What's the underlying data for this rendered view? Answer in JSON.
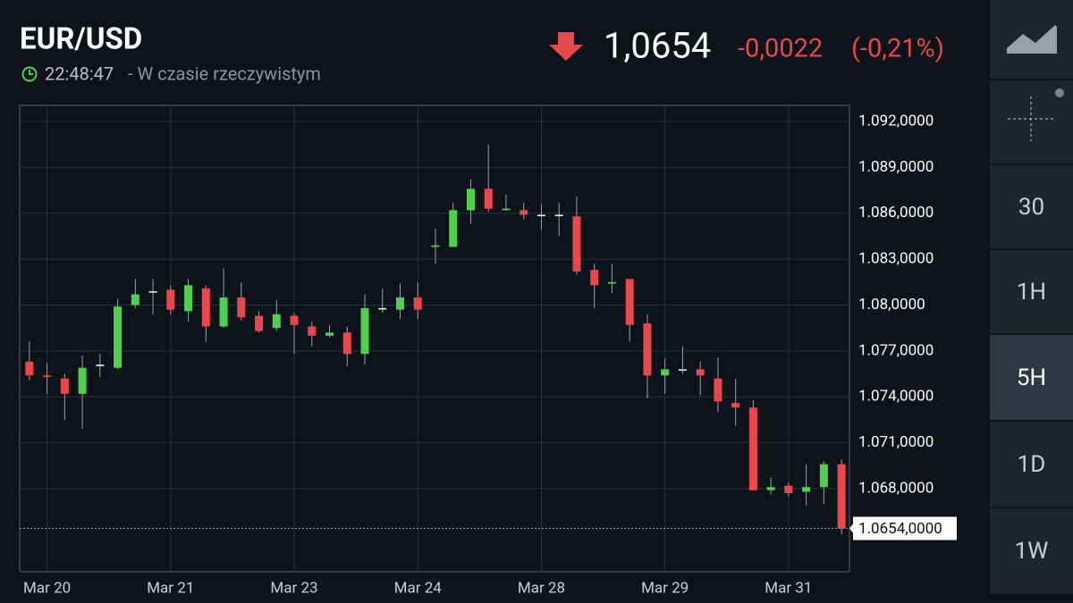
{
  "header": {
    "symbol": "EUR/USD",
    "time": "22:48:47",
    "mode": " - W czasie rzeczywistym",
    "price": "1,0654",
    "change": "-0,0022",
    "change_pct": "(-0,21%)"
  },
  "toolbar": {
    "intervals": [
      "30",
      "1H",
      "5H",
      "1D",
      "1W"
    ],
    "selected_interval": "5H"
  },
  "chart_data": {
    "type": "candlestick",
    "categories": [
      null,
      "Mar 20",
      null,
      null,
      null,
      null,
      null,
      null,
      "Mar 21",
      null,
      null,
      null,
      null,
      null,
      null,
      "Mar 23",
      null,
      null,
      null,
      null,
      null,
      null,
      "Mar 24",
      null,
      null,
      null,
      null,
      null,
      null,
      "Mar 28",
      null,
      null,
      null,
      null,
      null,
      null,
      "Mar 29",
      null,
      null,
      null,
      null,
      null,
      null,
      "Mar 31",
      null,
      null,
      null
    ],
    "open": [
      1.0763,
      1.0754,
      1.0752,
      1.0742,
      1.0761,
      1.0759,
      1.08,
      1.0809,
      1.081,
      1.0796,
      1.0811,
      1.0786,
      1.0805,
      1.0793,
      1.0785,
      1.0793,
      1.0786,
      1.078,
      1.0782,
      1.0768,
      1.0798,
      1.0797,
      1.0805,
      1.0838,
      1.0838,
      1.0862,
      1.0876,
      1.0862,
      1.0862,
      1.0859,
      1.0859,
      1.0858,
      1.0823,
      1.0814,
      1.0817,
      1.0788,
      1.0754,
      1.0758,
      1.0758,
      1.0752,
      1.0736,
      1.0733,
      1.0679,
      1.0682,
      1.0678,
      1.0681,
      1.0696
    ],
    "high": [
      1.0776,
      1.0762,
      1.0755,
      1.0767,
      1.0768,
      1.0804,
      1.0817,
      1.0817,
      1.0813,
      1.0817,
      1.0813,
      1.0824,
      1.0815,
      1.0796,
      1.0803,
      1.0795,
      1.0789,
      1.0787,
      1.0786,
      1.0807,
      1.0811,
      1.0814,
      1.0815,
      1.085,
      1.0867,
      1.0882,
      1.0905,
      1.0872,
      1.0867,
      1.0866,
      1.0867,
      1.0871,
      1.0827,
      1.0827,
      1.0817,
      1.0794,
      1.0765,
      1.0773,
      1.0763,
      1.0766,
      1.0752,
      1.0738,
      1.0687,
      1.0684,
      1.0696,
      1.0698,
      1.0699
    ],
    "low": [
      1.0751,
      1.0742,
      1.0725,
      1.0719,
      1.0753,
      1.0758,
      1.0798,
      1.0794,
      1.0794,
      1.0789,
      1.0776,
      1.0785,
      1.079,
      1.0782,
      1.0783,
      1.0768,
      1.0773,
      1.0779,
      1.076,
      1.0761,
      1.0795,
      1.0791,
      1.0791,
      1.0827,
      1.0838,
      1.0853,
      1.0861,
      1.0862,
      1.0856,
      1.0849,
      1.0845,
      1.082,
      1.0798,
      1.0808,
      1.0776,
      1.0739,
      1.0742,
      1.0755,
      1.0741,
      1.073,
      1.0721,
      1.0679,
      1.0676,
      1.0675,
      1.0669,
      1.067,
      1.065
    ],
    "close": [
      1.0754,
      1.0753,
      1.0742,
      1.0759,
      1.0761,
      1.0799,
      1.0807,
      1.0809,
      1.0797,
      1.0813,
      1.0786,
      1.0805,
      1.0792,
      1.0783,
      1.0794,
      1.0787,
      1.078,
      1.0782,
      1.0768,
      1.0798,
      1.0798,
      1.0805,
      1.0797,
      1.0839,
      1.0862,
      1.0876,
      1.0863,
      1.0863,
      1.0859,
      1.0859,
      1.0859,
      1.0822,
      1.0813,
      1.0815,
      1.0787,
      1.0754,
      1.0758,
      1.0758,
      1.0754,
      1.0737,
      1.0733,
      1.0679,
      1.0681,
      1.0677,
      1.0681,
      1.0696,
      1.0654
    ],
    "up_color": "#4fd14f",
    "down_color": "#e8474e",
    "flat_color": "#ffffff",
    "ylim": [
      1.06257,
      1.09305
    ],
    "yticks": [
      {
        "value": 1.092,
        "label": "1.092,0000"
      },
      {
        "value": 1.089,
        "label": "1.089,0000"
      },
      {
        "value": 1.086,
        "label": "1.086,0000"
      },
      {
        "value": 1.083,
        "label": "1.083,0000"
      },
      {
        "value": 1.08,
        "label": "1.08,0000"
      },
      {
        "value": 1.077,
        "label": "1.077,0000"
      },
      {
        "value": 1.074,
        "label": "1.074,0000"
      },
      {
        "value": 1.071,
        "label": "1.071,0000"
      },
      {
        "value": 1.068,
        "label": "1.068,0000"
      }
    ],
    "last_price": {
      "value": 1.0654,
      "label": "1.0654,0000"
    },
    "grid": true
  }
}
